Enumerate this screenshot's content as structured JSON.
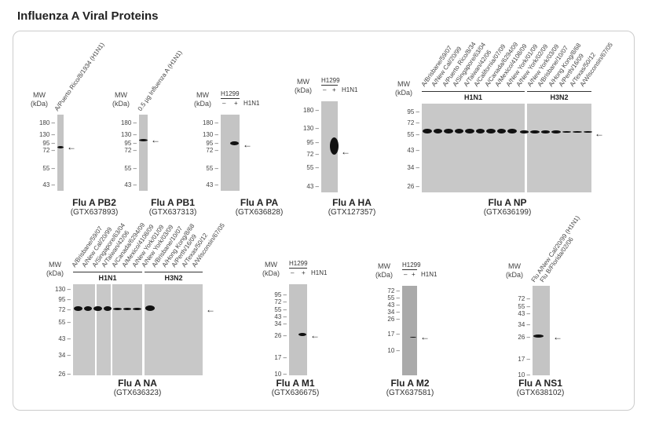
{
  "page_title": "Influenza A Viral Proteins",
  "mw_label": "MW",
  "kda_label": "(kDa)",
  "panels": [
    {
      "title": "Flu A PB2",
      "catalog": "(GTX637893)",
      "ticks": [
        "180",
        "130",
        "95",
        "72",
        "55",
        "43"
      ],
      "lanes": [
        "A/Puerto Rico/8/1934 (H1N1)"
      ]
    },
    {
      "title": "Flu A PB1",
      "catalog": "(GTX637313)",
      "ticks": [
        "180",
        "130",
        "95",
        "72",
        "55",
        "43"
      ],
      "lanes": [
        "0.5 µg Influenza A (H1N1)"
      ]
    },
    {
      "title": "Flu A PA",
      "catalog": "(GTX636828)",
      "ticks": [
        "180",
        "130",
        "95",
        "72",
        "55",
        "43"
      ],
      "cell": "H1299",
      "minus": "–",
      "plus": "+",
      "virus": "H1N1"
    },
    {
      "title": "Flu A HA",
      "catalog": "(GTX127357)",
      "ticks": [
        "180",
        "130",
        "95",
        "72",
        "55",
        "43"
      ],
      "cell": "H1299",
      "minus": "–",
      "plus": "+",
      "virus": "H1N1"
    },
    {
      "title": "Flu A NP",
      "catalog": "(GTX636199)",
      "ticks": [
        "95",
        "72",
        "55",
        "43",
        "34",
        "26"
      ],
      "lanes": [
        "A/Brisbane/59/07",
        "A/New Cal/20/99",
        "A/Puerto Rico/8/34",
        "A/Singapore/63/04",
        "A/Taiwan/42/06",
        "A/California/07/09",
        "A/Canada/6294/09",
        "A/Mexico/4108/09",
        "A/New York/01/09",
        "A/New York/02/09",
        "A/New York/03/09",
        "A/Brisbane/10/07",
        "A/Hong Kong/8/68",
        "A/Perth/16/09",
        "A/Texas/50/12",
        "A/Wisconsin/67/05"
      ],
      "groups": [
        "H1N1",
        "H3N2"
      ]
    },
    {
      "title": "Flu A NA",
      "catalog": "(GTX636323)",
      "ticks": [
        "130",
        "95",
        "72",
        "55",
        "43",
        "34",
        "26"
      ],
      "lanes": [
        "A/Brisbane/59/07",
        "A/New Cal/20/99",
        "A/Singapore/63/04",
        "A/Taiwan/42/06",
        "A/Canada/6294/09",
        "A/Mexico/4108/09",
        "A/New York/01/09",
        "A/New York/03/09",
        "A/Brisbane/10/07",
        "A/Hong Kong/8/68",
        "A/Perth/16/09",
        "A/Texas/50/12",
        "A/Wisconsin/67/05"
      ],
      "groups": [
        "H1N1",
        "H3N2"
      ]
    },
    {
      "title": "Flu A M1",
      "catalog": "(GTX636675)",
      "ticks": [
        "95",
        "72",
        "55",
        "43",
        "34",
        "26",
        "17",
        "10"
      ],
      "cell": "H1299",
      "minus": "–",
      "plus": "+",
      "virus": "H1N1"
    },
    {
      "title": "Flu A M2",
      "catalog": "(GTX637581)",
      "ticks": [
        "72",
        "55",
        "43",
        "34",
        "26",
        "17",
        "10"
      ],
      "cell": "H1299",
      "minus": "–",
      "plus": "+",
      "virus": "H1N1"
    },
    {
      "title": "Flu A NS1",
      "catalog": "(GTX638102)",
      "ticks": [
        "72",
        "55",
        "43",
        "34",
        "26",
        "17",
        "10"
      ],
      "lanes": [
        "Flu A/New Cal/20/99 (H1N1)",
        "Flu B/Florida/02/06"
      ]
    }
  ]
}
